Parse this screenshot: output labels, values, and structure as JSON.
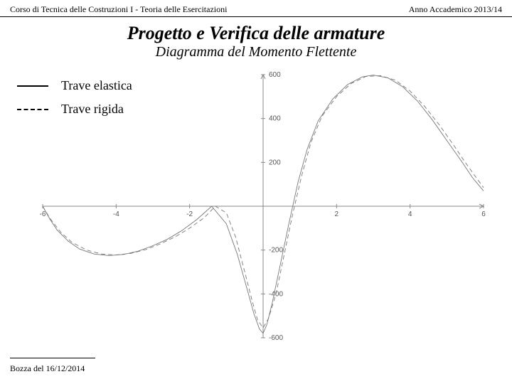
{
  "header": {
    "left": "Corso di Tecnica delle Costruzioni I - Teoria delle Esercitazioni",
    "right": "Anno Accademico 2013/14"
  },
  "title": "Progetto e Verifica delle armature",
  "subtitle": "Diagramma del Momento Flettente",
  "legend": {
    "items": [
      {
        "label": "Trave elastica",
        "style": "solid"
      },
      {
        "label": "Trave rigida",
        "style": "dashed"
      }
    ]
  },
  "footer": "Bozza del 16/12/2014",
  "chart": {
    "type": "line",
    "xlim": [
      -6,
      6
    ],
    "ylim": [
      -600,
      600
    ],
    "xticks": [
      -6,
      -4,
      -2,
      2,
      4,
      6
    ],
    "yticks": [
      -600,
      -400,
      -200,
      200,
      400,
      600
    ],
    "axis_color": "#888888",
    "tick_color": "#888888",
    "curve_color": "#777777",
    "curve_width": 0.9,
    "background_color": "#ffffff",
    "series": [
      {
        "name": "elastica",
        "dash": "none",
        "points": [
          [
            -6,
            0
          ],
          [
            -5.8,
            -60
          ],
          [
            -5.6,
            -110
          ],
          [
            -5.3,
            -160
          ],
          [
            -5.0,
            -195
          ],
          [
            -4.6,
            -218
          ],
          [
            -4.2,
            -225
          ],
          [
            -3.8,
            -220
          ],
          [
            -3.4,
            -205
          ],
          [
            -3.0,
            -180
          ],
          [
            -2.6,
            -150
          ],
          [
            -2.2,
            -110
          ],
          [
            -1.8,
            -60
          ],
          [
            -1.4,
            0
          ],
          [
            -1.0,
            -80
          ],
          [
            -0.7,
            -220
          ],
          [
            -0.45,
            -370
          ],
          [
            -0.25,
            -490
          ],
          [
            -0.1,
            -560
          ],
          [
            0,
            -580
          ],
          [
            0.1,
            -540
          ],
          [
            0.25,
            -440
          ],
          [
            0.45,
            -280
          ],
          [
            0.7,
            -80
          ],
          [
            0.95,
            110
          ],
          [
            1.2,
            260
          ],
          [
            1.5,
            390
          ],
          [
            1.9,
            490
          ],
          [
            2.3,
            555
          ],
          [
            2.7,
            590
          ],
          [
            3.0,
            598
          ],
          [
            3.4,
            585
          ],
          [
            3.8,
            545
          ],
          [
            4.2,
            480
          ],
          [
            4.6,
            395
          ],
          [
            5.0,
            300
          ],
          [
            5.4,
            205
          ],
          [
            5.7,
            130
          ],
          [
            6.0,
            70
          ]
        ]
      },
      {
        "name": "rigida",
        "dash": "6,4",
        "points": [
          [
            -6,
            0
          ],
          [
            -5.8,
            -55
          ],
          [
            -5.5,
            -120
          ],
          [
            -5.2,
            -165
          ],
          [
            -4.8,
            -200
          ],
          [
            -4.4,
            -218
          ],
          [
            -4.0,
            -222
          ],
          [
            -3.6,
            -215
          ],
          [
            -3.2,
            -198
          ],
          [
            -2.8,
            -172
          ],
          [
            -2.4,
            -140
          ],
          [
            -2.0,
            -100
          ],
          [
            -1.6,
            -52
          ],
          [
            -1.3,
            0
          ],
          [
            -1.0,
            -30
          ],
          [
            -0.75,
            -140
          ],
          [
            -0.5,
            -300
          ],
          [
            -0.3,
            -430
          ],
          [
            -0.15,
            -520
          ],
          [
            0,
            -555
          ],
          [
            0.15,
            -510
          ],
          [
            0.35,
            -400
          ],
          [
            0.55,
            -240
          ],
          [
            0.8,
            -40
          ],
          [
            1.05,
            140
          ],
          [
            1.3,
            290
          ],
          [
            1.6,
            410
          ],
          [
            2.0,
            500
          ],
          [
            2.4,
            560
          ],
          [
            2.8,
            592
          ],
          [
            3.2,
            595
          ],
          [
            3.6,
            575
          ],
          [
            4.0,
            525
          ],
          [
            4.4,
            455
          ],
          [
            4.8,
            370
          ],
          [
            5.2,
            275
          ],
          [
            5.5,
            200
          ],
          [
            5.8,
            130
          ],
          [
            6.0,
            85
          ]
        ]
      }
    ]
  }
}
